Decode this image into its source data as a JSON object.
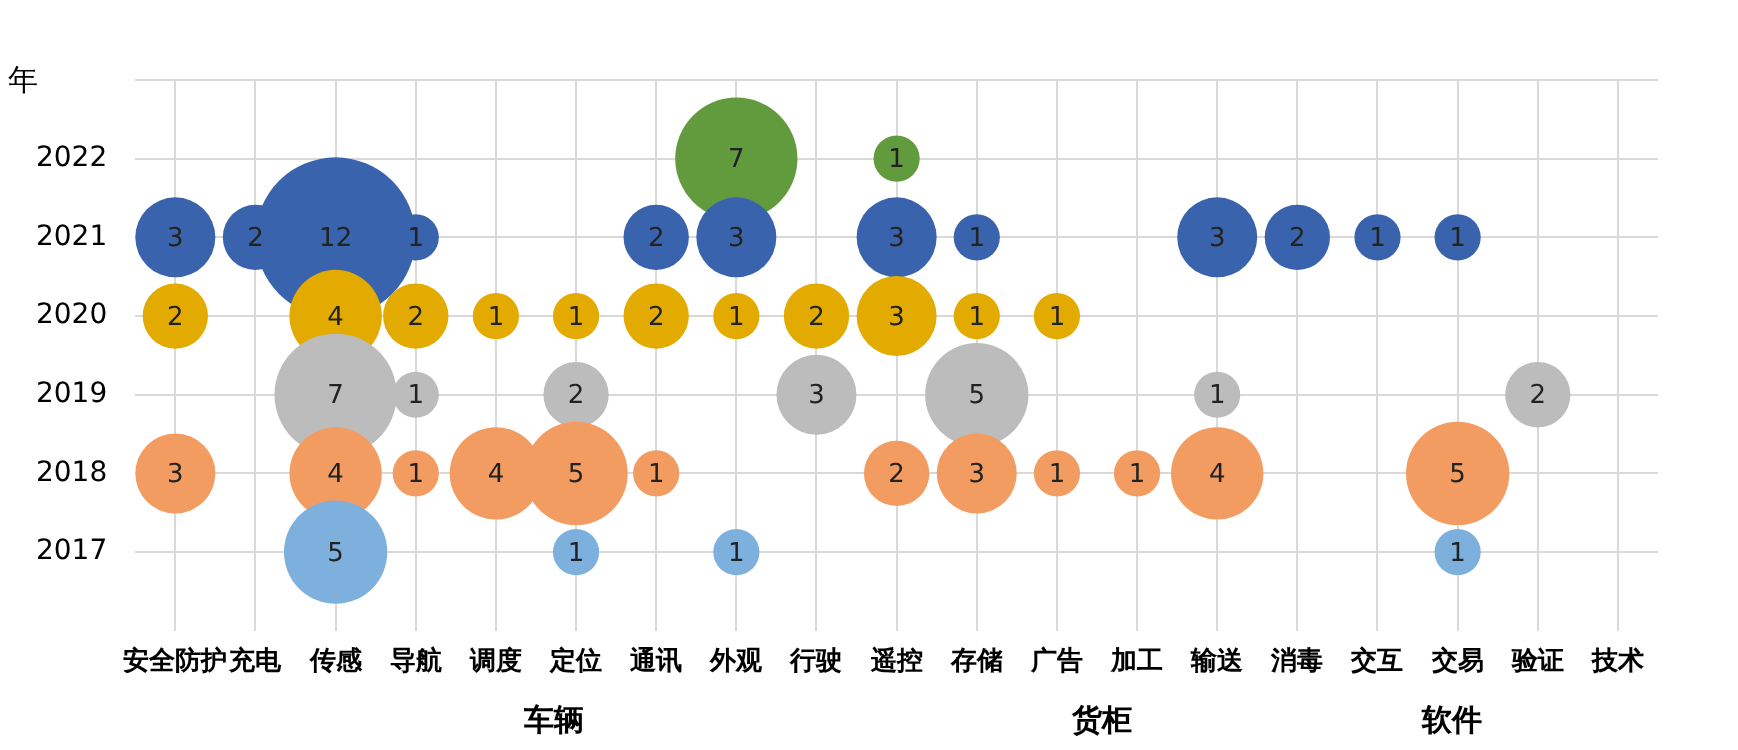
{
  "chart_data": {
    "type": "bubble",
    "ylabel": "年",
    "categories": [
      "安全防护",
      "充电",
      "传感",
      "导航",
      "调度",
      "定位",
      "通讯",
      "外观",
      "行驶",
      "遥控",
      "存储",
      "广告",
      "加工",
      "输送",
      "消毒",
      "交互",
      "交易",
      "验证",
      "技术"
    ],
    "series": [
      {
        "color": "#7eb0de",
        "x": [
          "传感",
          "定位",
          "外观",
          "交易"
        ],
        "values": [
          2017,
          2017,
          2017,
          2017
        ],
        "sizes": [
          5,
          1,
          1,
          1
        ],
        "value_labels": [
          "5",
          "1",
          "1",
          "1"
        ]
      },
      {
        "color": "#f29c62",
        "x": [
          "安全防护",
          "传感",
          "导航",
          "调度",
          "定位",
          "通讯",
          "遥控",
          "存储",
          "广告",
          "加工",
          "输送",
          "交易"
        ],
        "values": [
          2018,
          2018,
          2018,
          2018,
          2018,
          2018,
          2018,
          2018,
          2018,
          2018,
          2018,
          2018
        ],
        "sizes": [
          3,
          4,
          1,
          4,
          5,
          1,
          2,
          3,
          1,
          1,
          4,
          5
        ],
        "value_labels": [
          "3",
          "4",
          "1",
          "4",
          "5",
          "1",
          "2",
          "3",
          "1",
          "1",
          "4",
          "5"
        ]
      },
      {
        "color": "#bcbcbc",
        "x": [
          "传感",
          "导航",
          "定位",
          "行驶",
          "存储",
          "输送",
          "验证"
        ],
        "values": [
          2019,
          2019,
          2019,
          2019,
          2019,
          2019,
          2019
        ],
        "sizes": [
          7,
          1,
          2,
          3,
          5,
          1,
          2
        ],
        "value_labels": [
          "7",
          "1",
          "2",
          "3",
          "5",
          "1",
          "2"
        ]
      },
      {
        "color": "#e3aa00",
        "x": [
          "安全防护",
          "传感",
          "导航",
          "调度",
          "定位",
          "通讯",
          "外观",
          "行驶",
          "遥控",
          "存储",
          "广告"
        ],
        "values": [
          2020,
          2020,
          2020,
          2020,
          2020,
          2020,
          2020,
          2020,
          2020,
          2020,
          2020
        ],
        "sizes": [
          2,
          4,
          2,
          1,
          1,
          2,
          1,
          2,
          3,
          1,
          1
        ],
        "value_labels": [
          "2",
          "4",
          "2",
          "1",
          "1",
          "2",
          "1",
          "2",
          "3",
          "1",
          "1"
        ]
      },
      {
        "color": "#3a63ad",
        "x": [
          "安全防护",
          "充电",
          "传感",
          "导航",
          "通讯",
          "外观",
          "遥控",
          "存储",
          "输送",
          "消毒",
          "交互",
          "交易"
        ],
        "values": [
          2021,
          2021,
          2021,
          2021,
          2021,
          2021,
          2021,
          2021,
          2021,
          2021,
          2021,
          2021
        ],
        "sizes": [
          3,
          2,
          12,
          1,
          2,
          3,
          3,
          1,
          3,
          2,
          1,
          1
        ],
        "value_labels": [
          "3",
          "2",
          "12",
          "1",
          "2",
          "3",
          "3",
          "1",
          "3",
          "2",
          "1",
          "1"
        ]
      },
      {
        "color": "#629b3d",
        "x": [
          "外观",
          "遥控"
        ],
        "values": [
          2022,
          2022
        ],
        "sizes": [
          7,
          1
        ],
        "value_labels": [
          "7",
          "1"
        ]
      }
    ],
    "ylim": [
      2016,
      2023
    ],
    "yticks": [
      2017,
      2018,
      2019,
      2020,
      2021,
      2022,
      {
        "value": 2023,
        "label": null
      }
    ],
    "grid": true,
    "annotations": [
      "车辆",
      "货柜",
      "软件"
    ]
  }
}
